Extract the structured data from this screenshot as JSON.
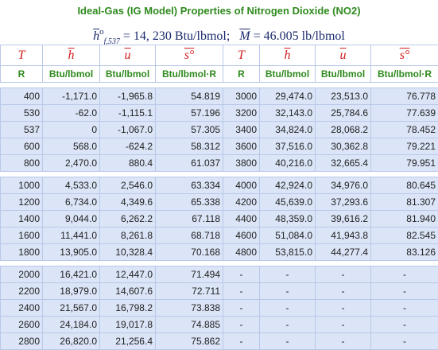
{
  "title": "Ideal-Gas (IG Model) Properties of Nitrogen Dioxide (NO2)",
  "formula": {
    "hf_value": "= 14, 230 Btu/lbmol;",
    "M_value": "= 46.005 lb/lbmol"
  },
  "columns": {
    "symbols": [
      "T",
      "h",
      "u",
      "s°",
      "T",
      "h",
      "u",
      "s°"
    ],
    "units": [
      "R",
      "Btu/lbmol",
      "Btu/lbmol",
      "Btu/lbmol·R",
      "R",
      "Btu/lbmol",
      "Btu/lbmol",
      "Btu/lbmol·R"
    ]
  },
  "groups": [
    [
      [
        "400",
        "-1,171.0",
        "-1,965.8",
        "54.819",
        "3000",
        "29,474.0",
        "23,513.0",
        "76.778"
      ],
      [
        "530",
        "-62.0",
        "-1,115.1",
        "57.196",
        "3200",
        "32,143.0",
        "25,784.6",
        "77.639"
      ],
      [
        "537",
        "0",
        "-1,067.0",
        "57.305",
        "3400",
        "34,824.0",
        "28,068.2",
        "78.452"
      ],
      [
        "600",
        "568.0",
        "-624.2",
        "58.312",
        "3600",
        "37,516.0",
        "30,362.8",
        "79.221"
      ],
      [
        "800",
        "2,470.0",
        "880.4",
        "61.037",
        "3800",
        "40,216.0",
        "32,665.4",
        "79.951"
      ]
    ],
    [
      [
        "1000",
        "4,533.0",
        "2,546.0",
        "63.334",
        "4000",
        "42,924.0",
        "34,976.0",
        "80.645"
      ],
      [
        "1200",
        "6,734.0",
        "4,349.6",
        "65.338",
        "4200",
        "45,639.0",
        "37,293.6",
        "81.307"
      ],
      [
        "1400",
        "9,044.0",
        "6,262.2",
        "67.118",
        "4400",
        "48,359.0",
        "39,616.2",
        "81.940"
      ],
      [
        "1600",
        "11,441.0",
        "8,261.8",
        "68.718",
        "4600",
        "51,084.0",
        "41,943.8",
        "82.545"
      ],
      [
        "1800",
        "13,905.0",
        "10,328.4",
        "70.168",
        "4800",
        "53,815.0",
        "44,277.4",
        "83.126"
      ]
    ],
    [
      [
        "2000",
        "16,421.0",
        "12,447.0",
        "71.494",
        "-",
        "-",
        "-",
        "-"
      ],
      [
        "2200",
        "18,979.0",
        "14,607.6",
        "72.711",
        "-",
        "-",
        "-",
        "-"
      ],
      [
        "2400",
        "21,567.0",
        "16,798.2",
        "73.838",
        "-",
        "-",
        "-",
        "-"
      ],
      [
        "2600",
        "24,184.0",
        "19,017.8",
        "74.885",
        "-",
        "-",
        "-",
        "-"
      ],
      [
        "2800",
        "26,820.0",
        "21,256.4",
        "75.862",
        "-",
        "-",
        "-",
        "-"
      ]
    ]
  ]
}
